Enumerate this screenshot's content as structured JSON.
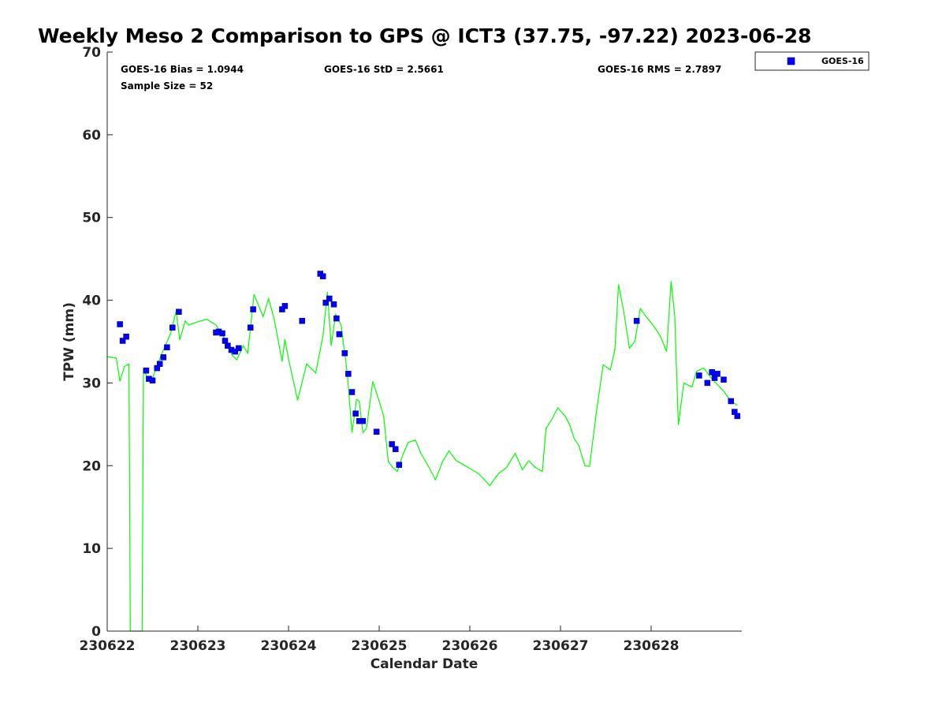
{
  "chart_data": {
    "type": "scatter",
    "title": "Weekly Meso 2 Comparison to GPS @ ICT3 (37.75, -97.22) 2023-06-28",
    "xlabel": "Calendar Date",
    "ylabel": "TPW (mm)",
    "xlim": [
      230622,
      230629
    ],
    "ylim": [
      0,
      70
    ],
    "x_ticks": [
      "230622",
      "230623",
      "230624",
      "230625",
      "230626",
      "230627",
      "230628"
    ],
    "y_ticks": [
      "0",
      "10",
      "20",
      "30",
      "40",
      "50",
      "60",
      "70"
    ],
    "grid": false,
    "legend_position": "top-right, outside plot",
    "stats": {
      "bias": "GOES-16 Bias = 1.0944",
      "std": "GOES-16 StD = 2.5661",
      "rms": "GOES-16 RMS = 2.7897",
      "sample_size": "Sample Size = 52"
    },
    "colors": {
      "gps_line": "#00ff00",
      "goes_marker": "#0000ff",
      "marker_edge": "#000080",
      "axis": "#262626"
    },
    "series": [
      {
        "name": "GOES-16",
        "kind": "scatter",
        "x": [
          230622.14,
          230622.17,
          230622.21,
          230622.43,
          230622.46,
          230622.5,
          230622.55,
          230622.58,
          230622.62,
          230622.66,
          230622.72,
          230622.79,
          230623.2,
          230623.23,
          230623.27,
          230623.3,
          230623.33,
          230623.37,
          230623.41,
          230623.45,
          230623.58,
          230623.61,
          230623.93,
          230623.96,
          230624.15,
          230624.35,
          230624.38,
          230624.41,
          230624.45,
          230624.5,
          230624.53,
          230624.56,
          230624.62,
          230624.66,
          230624.7,
          230624.74,
          230624.78,
          230624.82,
          230624.97,
          230625.14,
          230625.18,
          230625.22,
          230627.84,
          230628.53,
          230628.62,
          230628.67,
          230628.7,
          230628.73,
          230628.8,
          230628.88,
          230628.92,
          230628.95
        ],
        "y": [
          37.1,
          35.1,
          35.6,
          31.5,
          30.5,
          30.3,
          31.8,
          32.3,
          33.1,
          34.3,
          36.7,
          38.6,
          36.1,
          36.2,
          36.0,
          35.1,
          34.5,
          34.0,
          33.8,
          34.2,
          36.7,
          38.9,
          38.9,
          39.3,
          37.5,
          43.2,
          42.9,
          39.7,
          40.2,
          39.5,
          37.8,
          35.9,
          33.6,
          31.1,
          28.9,
          26.3,
          25.4,
          25.4,
          24.1,
          22.6,
          22.0,
          20.1,
          37.5,
          30.9,
          30.0,
          31.3,
          30.6,
          31.1,
          30.4,
          27.8,
          26.5,
          26.0
        ]
      },
      {
        "kind": "line",
        "x": [
          230622.0,
          230622.1,
          230622.14,
          230622.19,
          230622.24,
          230622.255,
          230622.27,
          230622.385,
          230622.4,
          230622.45,
          230622.5,
          230622.6,
          230622.7,
          230622.76,
          230622.8,
          230622.86,
          230622.9,
          230623.0,
          230623.1,
          230623.2,
          230623.3,
          230623.38,
          230623.43,
          230623.5,
          230623.55,
          230623.62,
          230623.72,
          230623.78,
          230623.84,
          230623.93,
          230623.96,
          230624.0,
          230624.1,
          230624.2,
          230624.3,
          230624.38,
          230624.43,
          230624.47,
          230624.52,
          230624.58,
          230624.65,
          230624.7,
          230624.75,
          230624.78,
          230624.82,
          230624.86,
          230624.93,
          230624.98,
          230625.05,
          230625.1,
          230625.15,
          230625.2,
          230625.26,
          230625.32,
          230625.4,
          230625.46,
          230625.55,
          230625.62,
          230625.7,
          230625.77,
          230625.85,
          230625.95,
          230626.1,
          230626.22,
          230626.32,
          230626.4,
          230626.5,
          230626.58,
          230626.65,
          230626.72,
          230626.8,
          230626.84,
          230626.9,
          230626.97,
          230627.05,
          230627.1,
          230627.15,
          230627.2,
          230627.27,
          230627.32,
          230627.4,
          230627.47,
          230627.55,
          230627.6,
          230627.64,
          230627.7,
          230627.76,
          230627.82,
          230627.88,
          230627.96,
          230628.02,
          230628.1,
          230628.17,
          230628.22,
          230628.26,
          230628.3,
          230628.36,
          230628.45,
          230628.5,
          230628.58,
          230628.67,
          230628.73,
          230628.8,
          230628.88,
          230628.95
        ],
        "y": [
          33.2,
          33.0,
          30.2,
          32.0,
          32.3,
          0,
          0,
          0,
          31.8,
          30.3,
          30.6,
          33.5,
          36.0,
          38.7,
          35.2,
          37.5,
          37.0,
          37.4,
          37.7,
          37.0,
          35.3,
          33.3,
          32.8,
          34.5,
          33.6,
          40.7,
          38.0,
          40.2,
          37.8,
          32.6,
          35.3,
          32.9,
          27.9,
          32.3,
          31.2,
          35.7,
          41.0,
          34.5,
          38.3,
          37.0,
          31.0,
          24.0,
          28.0,
          27.8,
          24.0,
          24.5,
          30.2,
          28.5,
          26.0,
          20.5,
          19.8,
          19.3,
          21.3,
          22.8,
          23.1,
          21.5,
          19.8,
          18.3,
          20.5,
          21.8,
          20.6,
          20.0,
          19.0,
          17.6,
          19.1,
          19.7,
          21.5,
          19.5,
          20.6,
          19.8,
          19.3,
          24.5,
          25.5,
          27.0,
          26.0,
          25.0,
          23.3,
          22.5,
          20.0,
          19.9,
          26.8,
          32.2,
          31.6,
          34.0,
          41.9,
          38.5,
          34.2,
          35.0,
          39.0,
          37.8,
          37.0,
          35.7,
          33.8,
          42.3,
          38.2,
          24.9,
          30.0,
          29.5,
          31.4,
          31.8,
          30.5,
          29.8,
          29.0,
          27.8,
          27.3
        ]
      }
    ]
  }
}
